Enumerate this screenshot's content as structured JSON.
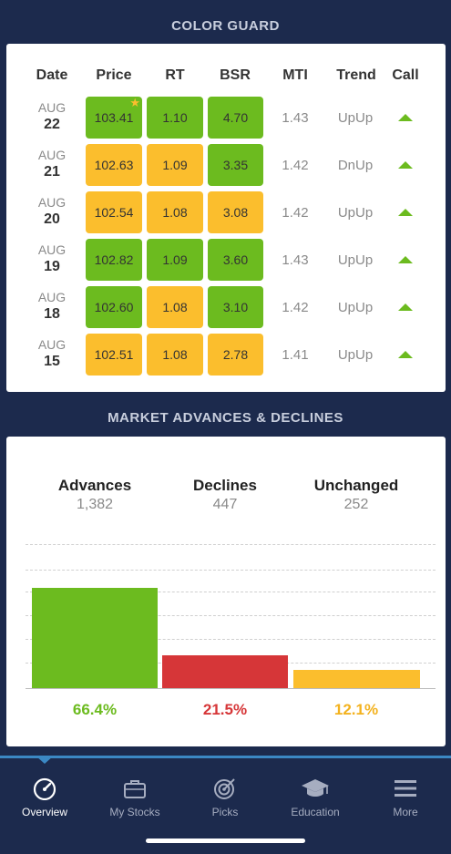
{
  "color_guard": {
    "title": "COLOR GUARD",
    "headers": [
      "Date",
      "Price",
      "RT",
      "BSR",
      "MTI",
      "Trend",
      "Call"
    ],
    "rows": [
      {
        "month": "AUG",
        "day": "22",
        "price": "103.41",
        "price_color": "green",
        "star": true,
        "rt": "1.10",
        "rt_color": "green",
        "bsr": "4.70",
        "bsr_color": "green",
        "mti": "1.43",
        "trend": "UpUp",
        "call": "up"
      },
      {
        "month": "AUG",
        "day": "21",
        "price": "102.63",
        "price_color": "yellow",
        "star": false,
        "rt": "1.09",
        "rt_color": "yellow",
        "bsr": "3.35",
        "bsr_color": "green",
        "mti": "1.42",
        "trend": "DnUp",
        "call": "up"
      },
      {
        "month": "AUG",
        "day": "20",
        "price": "102.54",
        "price_color": "yellow",
        "star": false,
        "rt": "1.08",
        "rt_color": "yellow",
        "bsr": "3.08",
        "bsr_color": "yellow",
        "mti": "1.42",
        "trend": "UpUp",
        "call": "up"
      },
      {
        "month": "AUG",
        "day": "19",
        "price": "102.82",
        "price_color": "green",
        "star": false,
        "rt": "1.09",
        "rt_color": "green",
        "bsr": "3.60",
        "bsr_color": "green",
        "mti": "1.43",
        "trend": "UpUp",
        "call": "up"
      },
      {
        "month": "AUG",
        "day": "18",
        "price": "102.60",
        "price_color": "green",
        "star": false,
        "rt": "1.08",
        "rt_color": "yellow",
        "bsr": "3.10",
        "bsr_color": "green",
        "mti": "1.42",
        "trend": "UpUp",
        "call": "up"
      },
      {
        "month": "AUG",
        "day": "15",
        "price": "102.51",
        "price_color": "yellow",
        "star": false,
        "rt": "1.08",
        "rt_color": "yellow",
        "bsr": "2.78",
        "bsr_color": "yellow",
        "mti": "1.41",
        "trend": "UpUp",
        "call": "up"
      }
    ]
  },
  "market": {
    "title": "MARKET ADVANCES & DECLINES",
    "advances_label": "Advances",
    "advances_value": "1,382",
    "declines_label": "Declines",
    "declines_value": "447",
    "unchanged_label": "Unchanged",
    "unchanged_value": "252"
  },
  "chart_data": {
    "type": "bar",
    "categories": [
      "Advances",
      "Declines",
      "Unchanged"
    ],
    "values": [
      66.4,
      21.5,
      12.1
    ],
    "labels": [
      "66.4%",
      "21.5%",
      "12.1%"
    ],
    "colors": [
      "#6cbb1f",
      "#d63638",
      "#fbbe2d"
    ],
    "ylim": [
      0,
      100
    ],
    "grid": true
  },
  "tabs": [
    {
      "label": "Overview",
      "icon": "speedometer-icon",
      "active": true
    },
    {
      "label": "My Stocks",
      "icon": "briefcase-icon",
      "active": false
    },
    {
      "label": "Picks",
      "icon": "target-icon",
      "active": false
    },
    {
      "label": "Education",
      "icon": "graduation-cap-icon",
      "active": false
    },
    {
      "label": "More",
      "icon": "menu-icon",
      "active": false
    }
  ],
  "colors": {
    "green": "#6cbb1f",
    "yellow": "#fbbe2d",
    "red": "#d63638",
    "navy": "#1c2a4d",
    "accent": "#3b88c4"
  }
}
